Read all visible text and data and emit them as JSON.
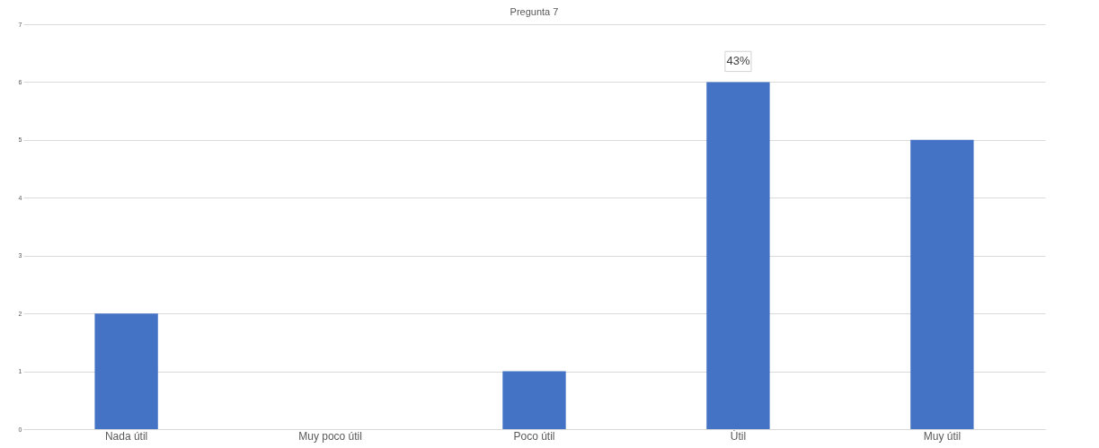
{
  "chart_data": {
    "type": "bar",
    "title": "Pregunta 7",
    "categories": [
      "Nada útil",
      "Muy poco útil",
      "Poco útil",
      "Útil",
      "Muy útil"
    ],
    "values": [
      2,
      0,
      1,
      6,
      5
    ],
    "color": "#4472c4",
    "ylim": [
      0,
      7
    ],
    "yticks": [
      0,
      1,
      2,
      3,
      4,
      5,
      6,
      7
    ],
    "grid": "y",
    "annotations": [
      {
        "text": "43%",
        "x": "Útil",
        "y": 6
      }
    ]
  }
}
